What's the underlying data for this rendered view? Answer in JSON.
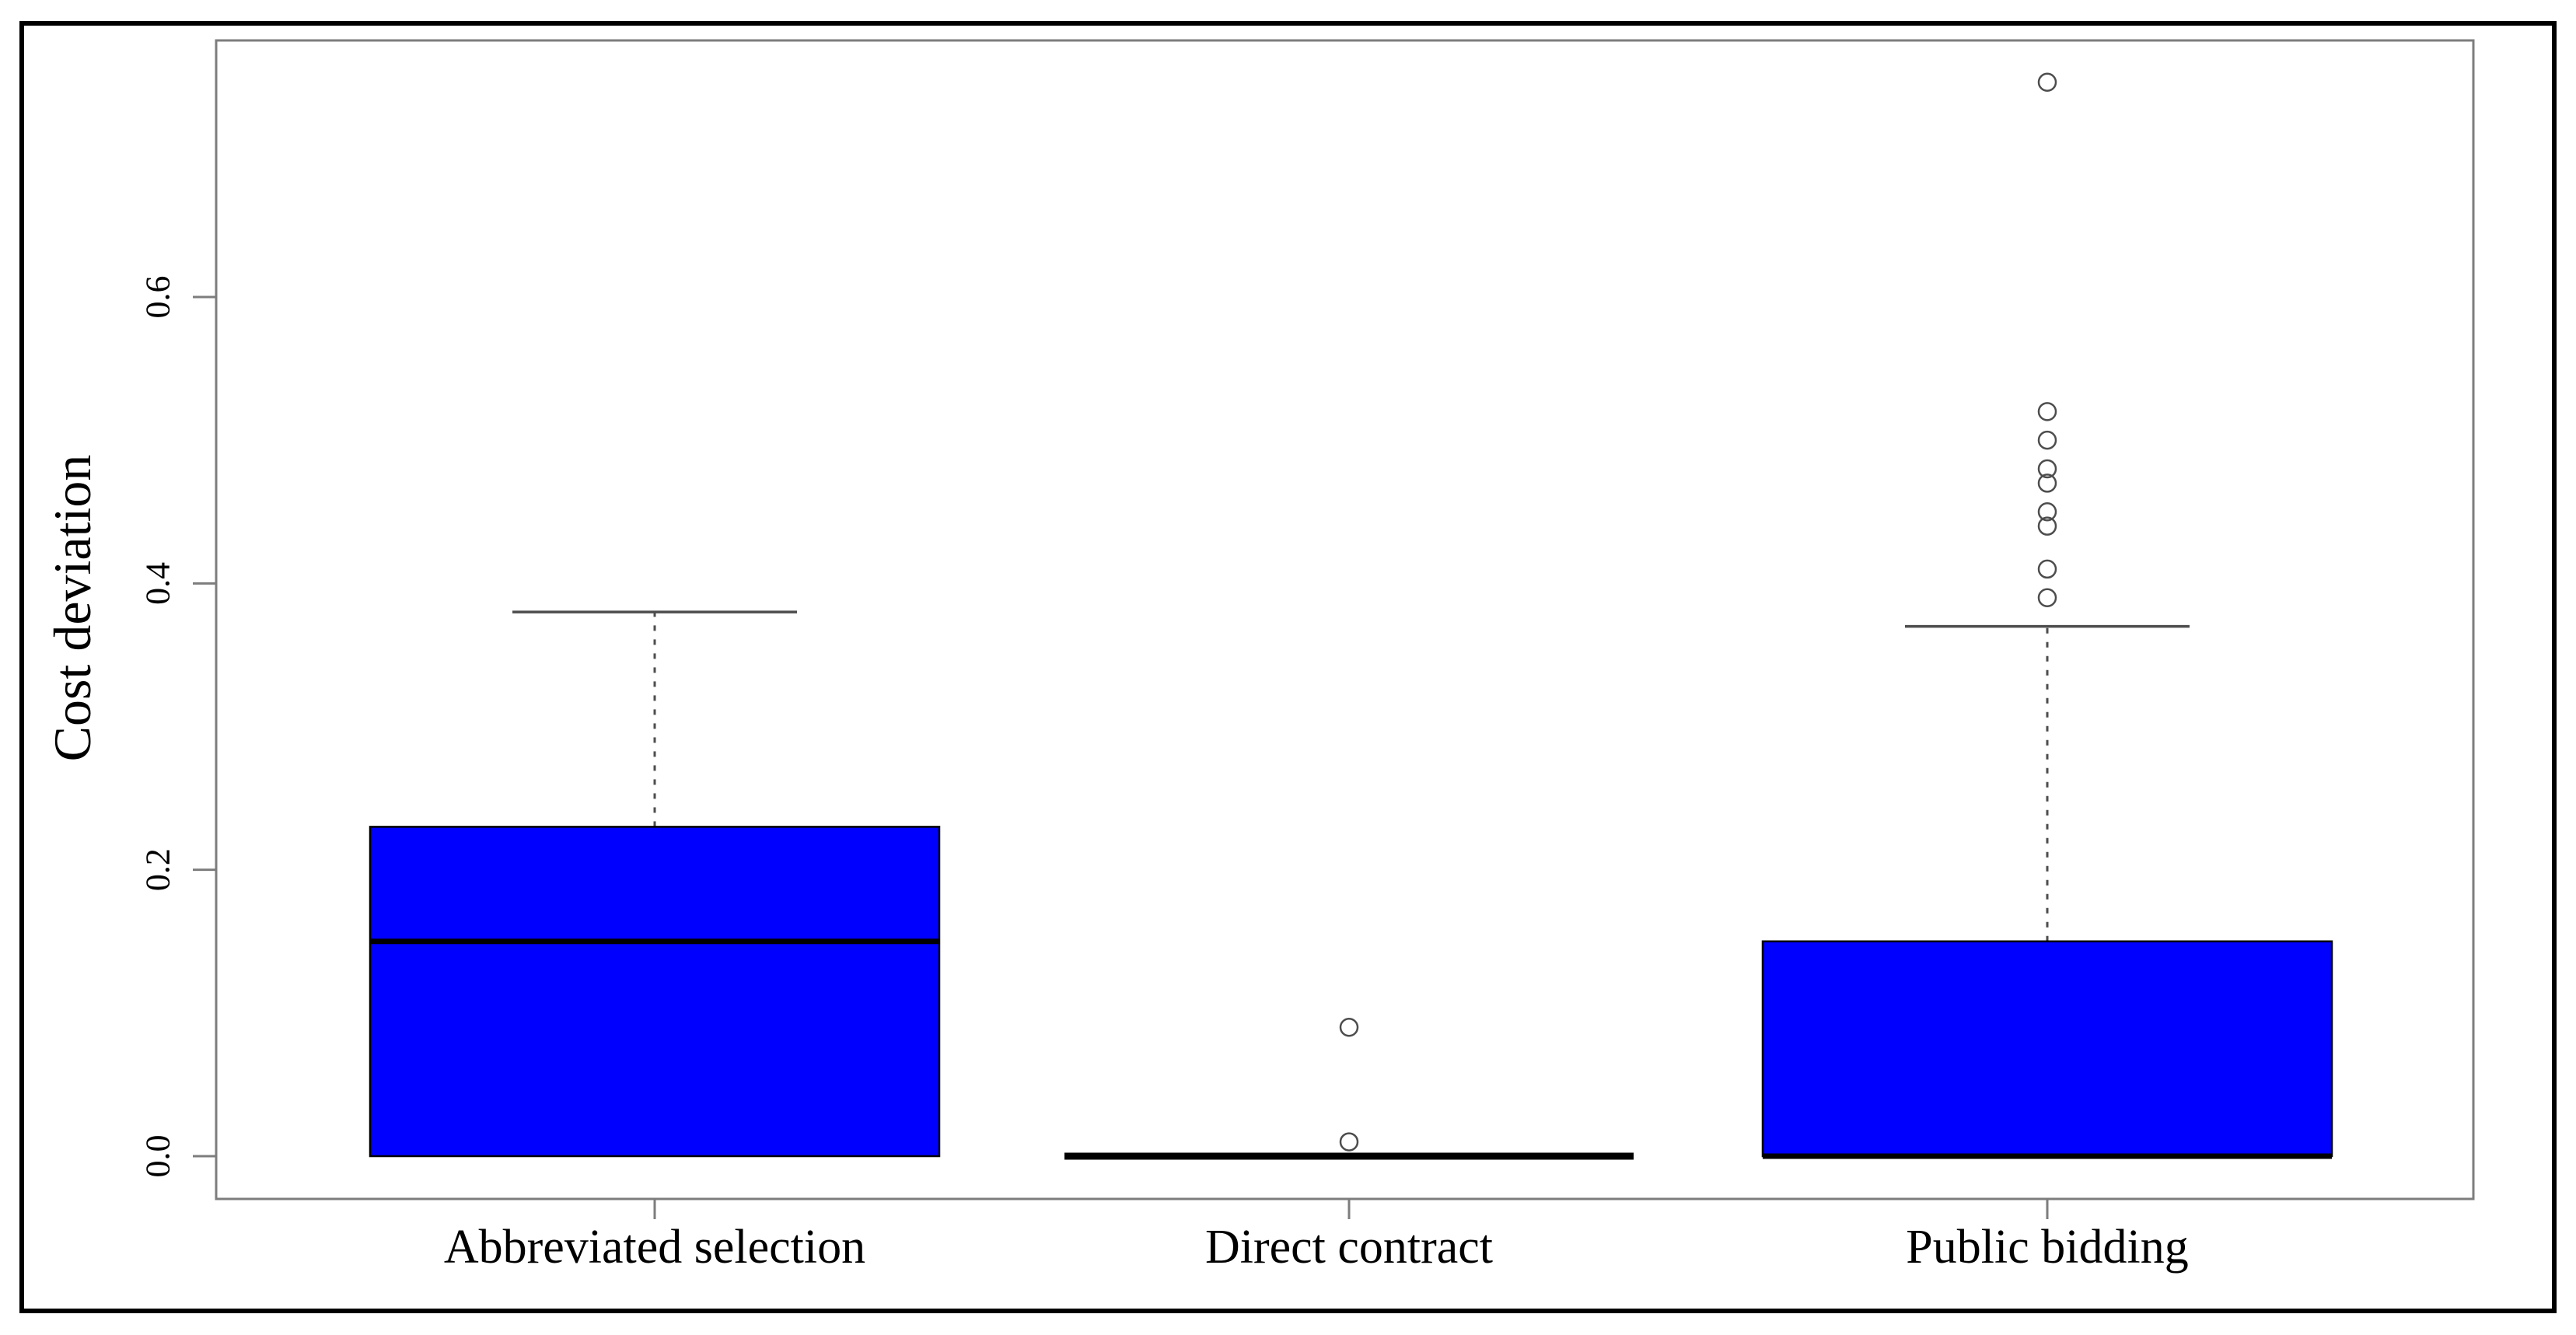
{
  "figure": {
    "kind": "boxplot-figure",
    "background": "#ffffff"
  },
  "chart_data": {
    "type": "boxplot",
    "title": "",
    "xlabel": "",
    "ylabel": "Cost deviation",
    "categories": [
      "Abbreviated selection",
      "Direct contract",
      "Public bidding"
    ],
    "yticks": [
      "0.0",
      "0.2",
      "0.4",
      "0.6"
    ],
    "ytick_values": [
      0.0,
      0.2,
      0.4,
      0.6
    ],
    "ylim": [
      -0.03,
      0.78
    ],
    "grid": "off",
    "legend": "none",
    "boxes": [
      {
        "category": "Abbreviated selection",
        "whisker_low": 0.0,
        "q1": 0.0,
        "median": 0.15,
        "q3": 0.23,
        "whisker_high": 0.38,
        "outliers": []
      },
      {
        "category": "Direct contract",
        "whisker_low": 0.0,
        "q1": 0.0,
        "median": 0.0,
        "q3": 0.0,
        "whisker_high": 0.0,
        "outliers": [
          0.01,
          0.09
        ]
      },
      {
        "category": "Public bidding",
        "whisker_low": 0.0,
        "q1": 0.0,
        "median": 0.0,
        "q3": 0.15,
        "whisker_high": 0.37,
        "outliers": [
          0.39,
          0.41,
          0.44,
          0.45,
          0.47,
          0.48,
          0.5,
          0.52,
          0.75
        ]
      }
    ],
    "colors": {
      "box_fill": "#0000ff",
      "box_border": "#000000",
      "median_line": "#000000",
      "whisker": "#4d4d4d",
      "outlier_stroke": "#4d4d4d",
      "axis": "#7d7d7d",
      "frame": "#000000",
      "text": "#000000"
    }
  }
}
